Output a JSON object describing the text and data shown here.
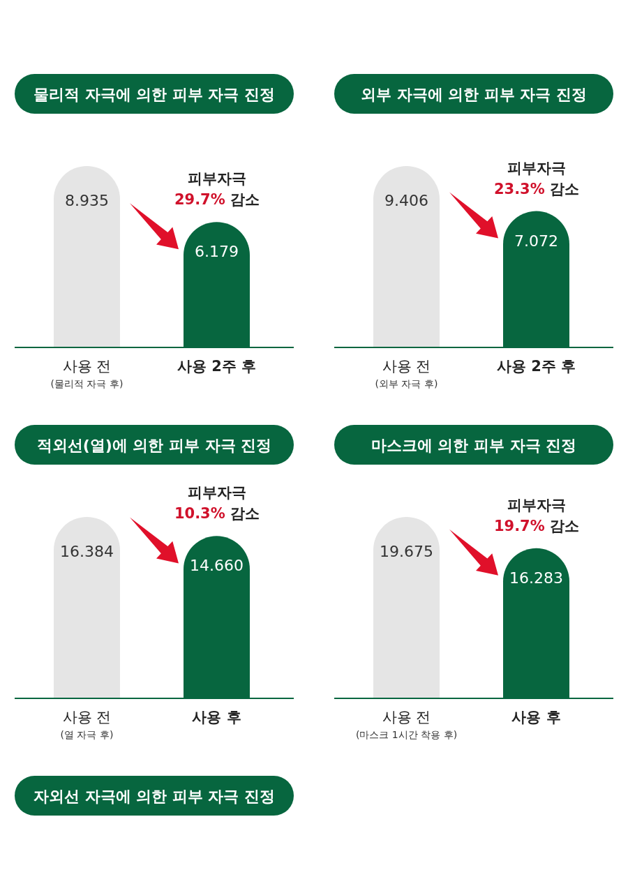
{
  "chart_data": [
    {
      "type": "bar",
      "title": "물리적 자극에 의한 피부 자극 진정",
      "categories": [
        "사용 전",
        "사용 2주 후"
      ],
      "values": [
        8.935,
        6.179
      ],
      "colors": [
        "#e5e5e5",
        "#07663f"
      ],
      "data_labels": true,
      "annotations": [
        "(물리적 자극 후)",
        "피부자극",
        "29.7%",
        "감소"
      ]
    },
    {
      "type": "bar",
      "title": "외부 자극에 의한 피부 자극 진정",
      "categories": [
        "사용 전",
        "사용 2주 후"
      ],
      "values": [
        9.406,
        7.072
      ],
      "colors": [
        "#e5e5e5",
        "#07663f"
      ],
      "data_labels": true,
      "annotations": [
        "(외부 자극 후)",
        "피부자극",
        "23.3%",
        "감소"
      ]
    },
    {
      "type": "bar",
      "title": "적외선(열)에 의한 피부 자극 진정",
      "categories": [
        "사용 전",
        "사용 후"
      ],
      "values": [
        16.384,
        14.66
      ],
      "value_labels": [
        "16.384",
        "14.660"
      ],
      "colors": [
        "#e5e5e5",
        "#07663f"
      ],
      "annotations": [
        "(열 자극 후)",
        "피부자극",
        "10.3%",
        "감소"
      ]
    },
    {
      "type": "bar",
      "title": "마스크에 의한 피부 자극 진정",
      "categories": [
        "사용 전",
        "사용 후"
      ],
      "values": [
        19.675,
        16.283
      ],
      "colors": [
        "#e5e5e5",
        "#07663f"
      ],
      "data_labels": true,
      "annotations": [
        "(마스크 1시간 착용 후)",
        "피부자극",
        "19.7%",
        "감소"
      ]
    },
    {
      "type": "other",
      "title": "자외선 자극에 의한 피부 자극 진정"
    }
  ]
}
